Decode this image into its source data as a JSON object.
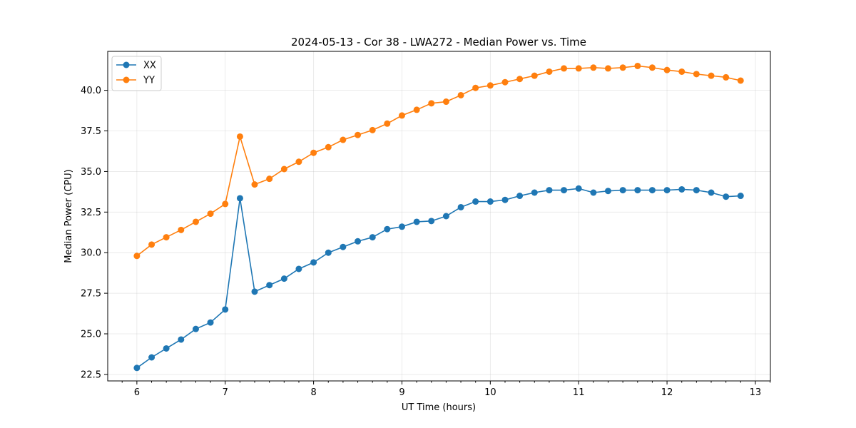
{
  "chart_data": {
    "type": "line",
    "title": "2024-05-13 - Cor 38 - LWA272 - Median Power vs. Time",
    "xlabel": "UT Time (hours)",
    "ylabel": "Median Power (CPU)",
    "xlim": [
      5.67,
      13.17
    ],
    "ylim": [
      22.1,
      42.4
    ],
    "xticks": [
      6,
      7,
      8,
      9,
      10,
      11,
      12,
      13
    ],
    "xtick_labels": [
      "6",
      "7",
      "8",
      "9",
      "10",
      "11",
      "12",
      "13"
    ],
    "yticks": [
      22.5,
      25.0,
      27.5,
      30.0,
      32.5,
      35.0,
      37.5,
      40.0
    ],
    "ytick_labels": [
      "22.5",
      "25.0",
      "27.5",
      "30.0",
      "32.5",
      "35.0",
      "37.5",
      "40.0"
    ],
    "grid": true,
    "legend_position": "top-left",
    "x": [
      6.0,
      6.167,
      6.333,
      6.5,
      6.667,
      6.833,
      7.0,
      7.167,
      7.333,
      7.5,
      7.667,
      7.833,
      8.0,
      8.167,
      8.333,
      8.5,
      8.667,
      8.833,
      9.0,
      9.167,
      9.333,
      9.5,
      9.667,
      9.833,
      10.0,
      10.167,
      10.333,
      10.5,
      10.667,
      10.833,
      11.0,
      11.167,
      11.333,
      11.5,
      11.667,
      11.833,
      12.0,
      12.167,
      12.333,
      12.5,
      12.667,
      12.833
    ],
    "series": [
      {
        "name": "XX",
        "color": "#1f77b4",
        "values": [
          22.9,
          23.55,
          24.1,
          24.65,
          25.3,
          25.7,
          26.5,
          33.35,
          27.6,
          28.0,
          28.4,
          29.0,
          29.4,
          30.0,
          30.35,
          30.7,
          30.95,
          31.45,
          31.6,
          31.9,
          31.95,
          32.25,
          32.8,
          33.15,
          33.15,
          33.25,
          33.5,
          33.7,
          33.85,
          33.85,
          33.95,
          33.7,
          33.8,
          33.85,
          33.85,
          33.85,
          33.85,
          33.9,
          33.85,
          33.7,
          33.45,
          33.5
        ]
      },
      {
        "name": "YY",
        "color": "#ff7f0e",
        "values": [
          29.8,
          30.5,
          30.95,
          31.4,
          31.9,
          32.4,
          33.0,
          37.15,
          34.2,
          34.55,
          35.15,
          35.6,
          36.15,
          36.5,
          36.95,
          37.25,
          37.55,
          37.95,
          38.45,
          38.8,
          39.2,
          39.3,
          39.7,
          40.15,
          40.3,
          40.5,
          40.7,
          40.9,
          41.15,
          41.35,
          41.35,
          41.4,
          41.35,
          41.4,
          41.5,
          41.4,
          41.25,
          41.15,
          41.0,
          40.9,
          40.8,
          40.6
        ]
      }
    ]
  }
}
